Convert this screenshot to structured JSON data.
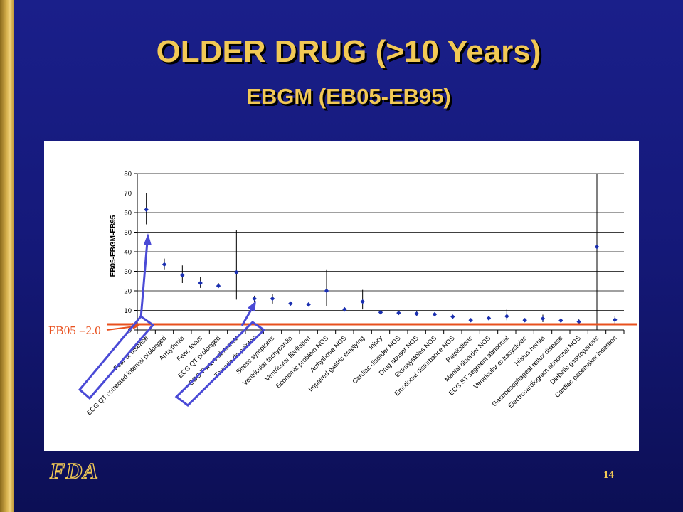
{
  "slide": {
    "title": "OLDER DRUG (>10 Years)",
    "subtitle": "EBGM (EB05-EB95)",
    "page_number": "14",
    "logo_text": "FDA",
    "annotation_label": "EB05 =2.0",
    "colors": {
      "background": "#15197a",
      "title": "#f2c955",
      "accent_line": "#e8501e",
      "highlight_box": "#4a4ad6",
      "marker": "#1a2fb0"
    }
  },
  "chart_data": {
    "type": "scatter",
    "title": "",
    "xlabel": "",
    "ylabel": "EB05-EBGM-EB95",
    "ylim": [
      0,
      80
    ],
    "yticks": [
      0,
      10,
      20,
      30,
      40,
      50,
      60,
      70,
      80
    ],
    "grid": true,
    "reference_line": {
      "y": 2.0,
      "label": "EB05 =2.0"
    },
    "categories": [
      "Fear of disease",
      "ECG QT corrected interval prolonged",
      "Arrhythmia",
      "Fear, focus",
      "ECG QT prolonged",
      "ECG T wave abnormal",
      "Torsade de pointes",
      "Stress symptoms",
      "Ventricular tachycardia",
      "Ventricular fibrillation",
      "Economic problem NOS",
      "Arrhythmia NOS",
      "Impaired gastric emptying",
      "Injury",
      "Cardiac disorder NOS",
      "Drug abuser NOS",
      "Extrasystoles NOS",
      "Emotional disturbance NOS",
      "Palpitations",
      "Mental disorder NOS",
      "ECG ST segment abnormal",
      "Ventricular extrasystoles",
      "Hiatus hernia",
      "Gastroesophageal reflux disease",
      "Electrocardiogram abnormal NOS",
      "Diabetic gastroparesis",
      "Cardiac pacemaker insertion"
    ],
    "series": [
      {
        "ebgm": [
          61.5,
          33.5,
          28,
          24,
          22.5,
          29.5,
          16,
          16,
          13.5,
          13,
          20,
          10.5,
          14.5,
          9,
          8.7,
          8.3,
          8,
          6.8,
          5,
          6,
          7,
          5,
          5.8,
          4.8,
          4.2,
          42.5,
          5.2
        ],
        "eb05": [
          54,
          31,
          24,
          21.5,
          21.5,
          15.5,
          14.5,
          13.5,
          12.5,
          12,
          12,
          9.5,
          10.5,
          8.2,
          7.7,
          7.2,
          7,
          6,
          4.2,
          5.3,
          5,
          4,
          4,
          3.7,
          3,
          0,
          3.2
        ],
        "eb95": [
          70,
          36.5,
          33,
          27,
          24,
          51,
          17.5,
          18.5,
          14.5,
          14,
          31,
          11.5,
          20.5,
          9.8,
          9.7,
          9.5,
          9,
          7.6,
          5.8,
          6.8,
          10.5,
          6,
          7.8,
          5.9,
          5.4,
          80,
          7.2
        ]
      }
    ]
  }
}
